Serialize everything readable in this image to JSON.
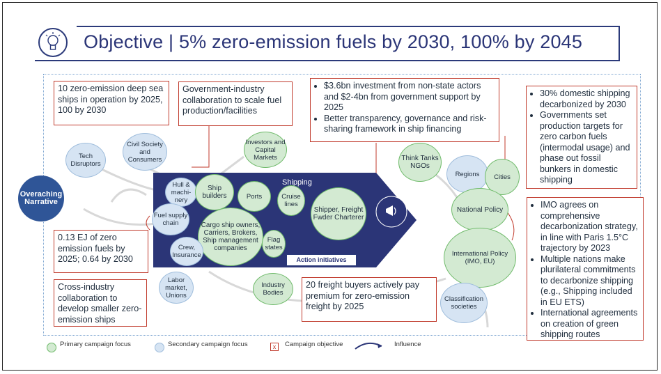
{
  "title": "Objective | 5% zero-emission fuels by 2030, 100% by 2045",
  "objectives": {
    "deep_sea": "10 zero-emission deep sea ships in operation by 2025, 100 by 2030",
    "gov_industry": "Government-industry collaboration to scale fuel production/facilities",
    "investment": [
      "$3.6bn investment from non-state actors and $2-4bn from government support by 2025",
      "Better transparency, governance and risk-sharing framework in ship financing"
    ],
    "domestic": [
      "30% domestic shipping decarbonized by 2030",
      "Governments set production targets for zero carbon fuels (intermodal usage) and phase out fossil bunkers in domestic shipping"
    ],
    "imo": [
      "IMO agrees on comprehensive decarbonization strategy, in line with Paris 1.5°C trajectory by 2023",
      "Multiple nations make plurilateral commitments to decarbonize shipping (e.g., Shipping included in EU ETS)",
      "International agreements on creation of green shipping routes"
    ],
    "fuels": "0.13 EJ of zero emission fuels by 2025; 0.64 by 2030",
    "cross_industry": "Cross-industry collaboration to develop smaller zero-emission ships",
    "freight": "20 freight buyers actively pay premium for zero-emission freight by 2025"
  },
  "nodes": {
    "overarching": "Overaching Narrative",
    "tech": "Tech Disruptors",
    "civil": "Civil Society and Consumers",
    "investors": "Investors and Capital Markets",
    "think_tanks": "Think Tanks NGOs",
    "regions": "Regions",
    "cities": "Cities",
    "national": "National Policy",
    "international": "International Policy (IMO, EU)",
    "classification": "Classification societies",
    "hull": "Hull & machi-nery",
    "ship_builders": "Ship builders",
    "ports": "Ports",
    "cruise": "Cruise lines",
    "shipper": "Shipper, Freight Fwder Charterer",
    "fuel_supply": "Fuel supply chain",
    "cargo": "Cargo ship owners, Carriers, Brokers, Ship management companies",
    "flag": "Flag states",
    "crew": "Crew, Insurance",
    "labor": "Labor market, Unions",
    "industry": "Industry Bodies"
  },
  "shipping_label": "Shipping",
  "action_label": "Action initiatives",
  "legend": {
    "primary": "Primary campaign focus",
    "secondary": "Secondary campaign focus",
    "objective_mark": "x",
    "objective": "Campaign objective",
    "influence": "Influence"
  },
  "colors": {
    "navy": "#2b3577",
    "primary_fill": "#d3ead2",
    "secondary_fill": "#d6e4f3",
    "objective_red": "#c0392b"
  }
}
